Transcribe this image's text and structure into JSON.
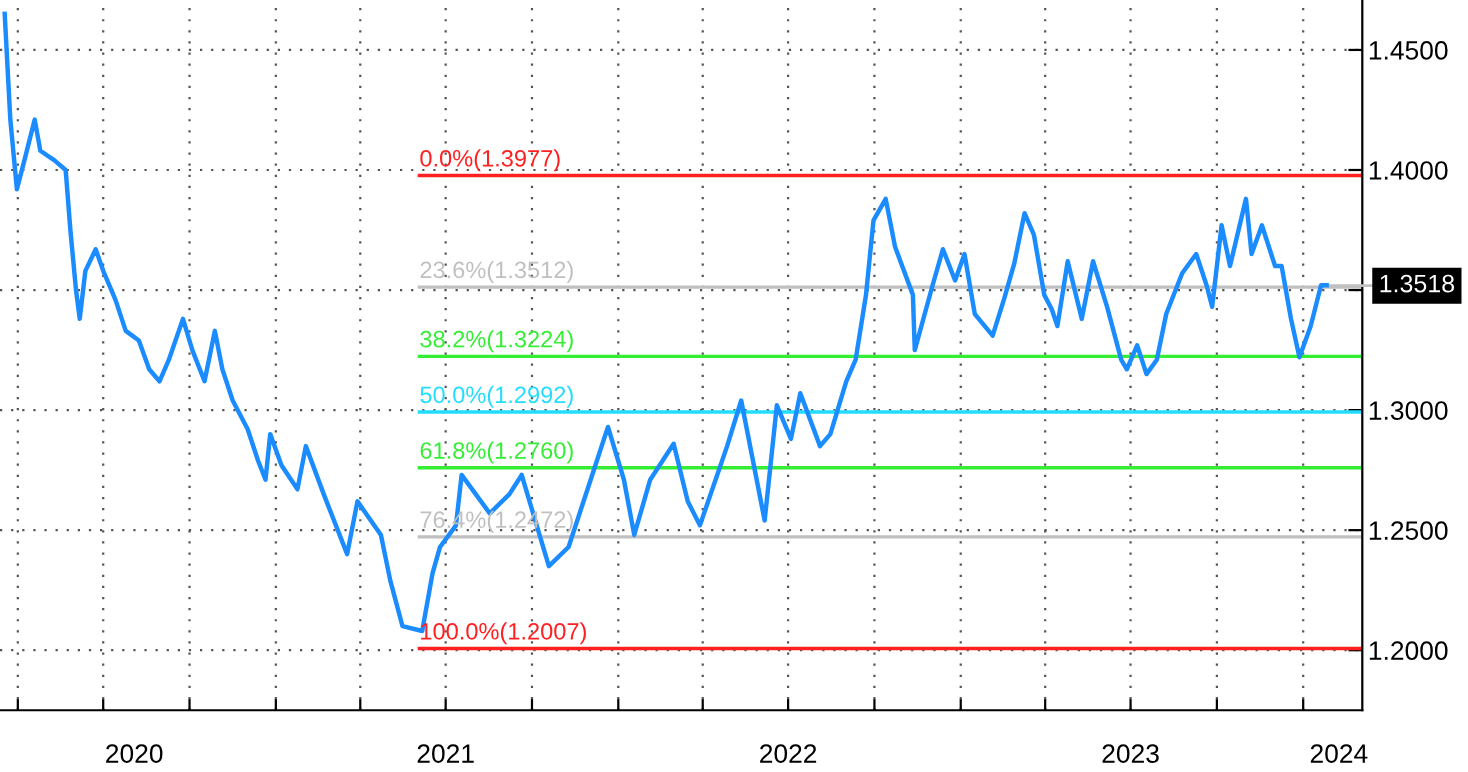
{
  "chart_data": {
    "type": "line",
    "xlim": [
      "2020-03-13",
      "2024-03-04"
    ],
    "ylim": [
      1.175,
      1.4708
    ],
    "xticks": [
      {
        "value": "2020-04-01",
        "label": null
      },
      {
        "value": "2020-07-01",
        "label": null
      },
      {
        "value": "2020-10-01",
        "label": null
      },
      {
        "value": "2021-01-01",
        "label": null
      },
      {
        "value": "2021-04-01",
        "label": null
      },
      {
        "value": "2021-07-01",
        "label": null
      },
      {
        "value": "2021-10-01",
        "label": null
      },
      {
        "value": "2022-01-01",
        "label": null
      },
      {
        "value": "2022-04-01",
        "label": null
      },
      {
        "value": "2022-07-01",
        "label": null
      },
      {
        "value": "2022-10-01",
        "label": null
      },
      {
        "value": "2023-01-01",
        "label": null
      },
      {
        "value": "2023-04-01",
        "label": null
      },
      {
        "value": "2023-07-01",
        "label": null
      },
      {
        "value": "2023-10-01",
        "label": null
      },
      {
        "value": "2024-01-01",
        "label": null
      },
      {
        "value": "2020-08-03",
        "label": "2020"
      },
      {
        "value": "2021-07-01",
        "label": "2021"
      },
      {
        "value": "2022-07-01",
        "label": "2022"
      },
      {
        "value": "2023-07-01",
        "label": "2023"
      },
      {
        "value": "2024-02-08",
        "label": "2024"
      }
    ],
    "yticks": [
      {
        "value": 1.2,
        "label": "1.2000"
      },
      {
        "value": 1.25,
        "label": "1.2500"
      },
      {
        "value": 1.3,
        "label": "1.3000"
      },
      {
        "value": 1.35,
        "label": null
      },
      {
        "value": 1.4,
        "label": "1.4000"
      },
      {
        "value": 1.45,
        "label": "1.4500"
      }
    ],
    "grid": true,
    "annotations": [
      {
        "text": "1.3518",
        "x": "2024-01-26",
        "y": 1.3518
      }
    ],
    "series": [
      {
        "color": "#1a8cff",
        "x": [
          "2020-03-18",
          "2020-03-24",
          "2020-03-31",
          "2020-04-08",
          "2020-04-19",
          "2020-04-25",
          "2020-05-10",
          "2020-05-22",
          "2020-05-27",
          "2020-06-02",
          "2020-06-06",
          "2020-06-12",
          "2020-06-23",
          "2020-07-01",
          "2020-07-14",
          "2020-07-25",
          "2020-08-08",
          "2020-08-19",
          "2020-08-30",
          "2020-09-09",
          "2020-09-24",
          "2020-10-04",
          "2020-10-17",
          "2020-10-28",
          "2020-11-05",
          "2020-11-16",
          "2020-12-02",
          "2020-12-13",
          "2020-12-21",
          "2020-12-26",
          "2021-01-07",
          "2021-01-24",
          "2021-02-02",
          "2021-02-21",
          "2021-03-18",
          "2021-03-29",
          "2021-04-23",
          "2021-05-03",
          "2021-05-16",
          "2021-06-06",
          "2021-06-17",
          "2021-06-25",
          "2021-07-12",
          "2021-07-18",
          "2021-08-17",
          "2021-09-07",
          "2021-09-20",
          "2021-10-19",
          "2021-11-09",
          "2021-11-30",
          "2021-12-21",
          "2022-01-07",
          "2022-01-18",
          "2022-02-04",
          "2022-03-01",
          "2022-03-16",
          "2022-03-29",
          "2022-04-27",
          "2022-05-12",
          "2022-06-06",
          "2022-06-19",
          "2022-07-04",
          "2022-07-14",
          "2022-08-04",
          "2022-08-15",
          "2022-09-01",
          "2022-09-11",
          "2022-09-22",
          "2022-09-30",
          "2022-10-13",
          "2022-10-23",
          "2022-11-11",
          "2022-11-13",
          "2022-12-02",
          "2022-12-13",
          "2022-12-26",
          "2023-01-05",
          "2023-01-16",
          "2023-02-04",
          "2023-02-16",
          "2023-02-27",
          "2023-03-10",
          "2023-03-20",
          "2023-03-31",
          "2023-04-08",
          "2023-04-14",
          "2023-04-25",
          "2023-05-10",
          "2023-05-22",
          "2023-06-06",
          "2023-06-21",
          "2023-06-27",
          "2023-07-08",
          "2023-07-18",
          "2023-07-29",
          "2023-08-08",
          "2023-08-25",
          "2023-09-09",
          "2023-09-20",
          "2023-09-26",
          "2023-10-06",
          "2023-10-15",
          "2023-11-01",
          "2023-11-07",
          "2023-11-18",
          "2023-12-02",
          "2023-12-09",
          "2023-12-19",
          "2023-12-28",
          "2024-01-09",
          "2024-01-20",
          "2024-01-26"
        ],
        "values": [
          1.465,
          1.421,
          1.392,
          1.404,
          1.421,
          1.408,
          1.404,
          1.4,
          1.375,
          1.35,
          1.338,
          1.358,
          1.367,
          1.358,
          1.346,
          1.333,
          1.329,
          1.317,
          1.312,
          1.321,
          1.338,
          1.325,
          1.312,
          1.333,
          1.317,
          1.304,
          1.292,
          1.279,
          1.271,
          1.29,
          1.277,
          1.267,
          1.285,
          1.265,
          1.24,
          1.262,
          1.248,
          1.229,
          1.21,
          1.208,
          1.232,
          1.243,
          1.252,
          1.273,
          1.257,
          1.265,
          1.273,
          1.235,
          1.243,
          1.268,
          1.293,
          1.271,
          1.248,
          1.271,
          1.286,
          1.262,
          1.252,
          1.285,
          1.304,
          1.254,
          1.302,
          1.288,
          1.307,
          1.285,
          1.29,
          1.312,
          1.321,
          1.348,
          1.379,
          1.388,
          1.368,
          1.348,
          1.325,
          1.352,
          1.367,
          1.354,
          1.365,
          1.34,
          1.331,
          1.346,
          1.361,
          1.382,
          1.373,
          1.348,
          1.342,
          1.335,
          1.362,
          1.338,
          1.362,
          1.343,
          1.321,
          1.317,
          1.327,
          1.315,
          1.321,
          1.34,
          1.357,
          1.365,
          1.352,
          1.343,
          1.377,
          1.36,
          1.388,
          1.365,
          1.377,
          1.36,
          1.36,
          1.338,
          1.322,
          1.335,
          1.352,
          1.352
        ]
      },
      {
        "name": "0.0%(1.3977)",
        "color": "#ff2020",
        "x": [
          "2021-06-03",
          "2024-03-04"
        ],
        "values": [
          1.3977,
          1.3977
        ]
      },
      {
        "name": "23.6%(1.3512)",
        "color": "#c0c0c0",
        "x": [
          "2021-06-03",
          "2024-03-04"
        ],
        "values": [
          1.3512,
          1.3512
        ]
      },
      {
        "name": "38.2%(1.3224)",
        "color": "#33ee33",
        "x": [
          "2021-06-03",
          "2024-03-04"
        ],
        "values": [
          1.3224,
          1.3224
        ]
      },
      {
        "name": "50.0%(1.2992)",
        "color": "#22ddff",
        "x": [
          "2021-06-03",
          "2024-03-04"
        ],
        "values": [
          1.2992,
          1.2992
        ]
      },
      {
        "name": "61.8%(1.2760)",
        "color": "#33ee33",
        "x": [
          "2021-06-03",
          "2024-03-04"
        ],
        "values": [
          1.276,
          1.276
        ]
      },
      {
        "name": "76.4%(1.2472)",
        "color": "#c0c0c0",
        "x": [
          "2021-06-03",
          "2024-03-04"
        ],
        "values": [
          1.2472,
          1.2472
        ]
      },
      {
        "name": "100.0%(1.2007)",
        "color": "#ff2020",
        "x": [
          "2021-06-03",
          "2024-03-04"
        ],
        "values": [
          1.2007,
          1.2007
        ]
      }
    ]
  }
}
